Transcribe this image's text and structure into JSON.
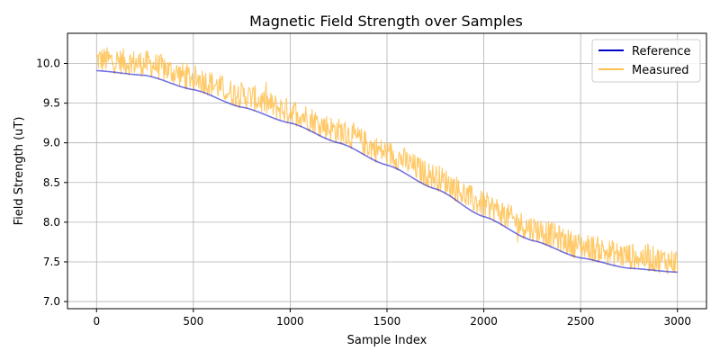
{
  "chart_data": {
    "type": "line",
    "title": "Magnetic Field Strength over Samples",
    "xlabel": "Sample Index",
    "ylabel": "Field Strength (uT)",
    "xlim": [
      -150,
      3150
    ],
    "ylim": [
      6.91,
      10.38
    ],
    "xticks": [
      0,
      500,
      1000,
      1500,
      2000,
      2500,
      3000
    ],
    "yticks": [
      7.0,
      7.5,
      8.0,
      8.5,
      9.0,
      9.5,
      10.0
    ],
    "xtick_labels": [
      "0",
      "500",
      "1000",
      "1500",
      "2000",
      "2500",
      "3000"
    ],
    "ytick_labels": [
      "7.0",
      "7.5",
      "8.0",
      "8.5",
      "9.0",
      "9.5",
      "10.0"
    ],
    "grid": true,
    "legend": "top-right",
    "series": [
      {
        "name": "Reference",
        "color": "#0000cc",
        "x": [
          0,
          250,
          500,
          750,
          1000,
          1250,
          1500,
          1750,
          2000,
          2250,
          2500,
          2750,
          3000
        ],
        "values": [
          9.91,
          9.85,
          9.67,
          9.45,
          9.25,
          9.0,
          8.72,
          8.42,
          8.07,
          7.77,
          7.55,
          7.42,
          7.37
        ]
      },
      {
        "name": "Measured",
        "color": "#ffc04d",
        "x": [
          0,
          250,
          500,
          750,
          1000,
          1250,
          1500,
          1750,
          2000,
          2250,
          2500,
          2750,
          3000
        ],
        "values": [
          10.05,
          10.0,
          9.82,
          9.6,
          9.4,
          9.15,
          8.87,
          8.57,
          8.22,
          7.92,
          7.7,
          7.57,
          7.5
        ],
        "noise_amplitude": 0.17
      }
    ]
  }
}
